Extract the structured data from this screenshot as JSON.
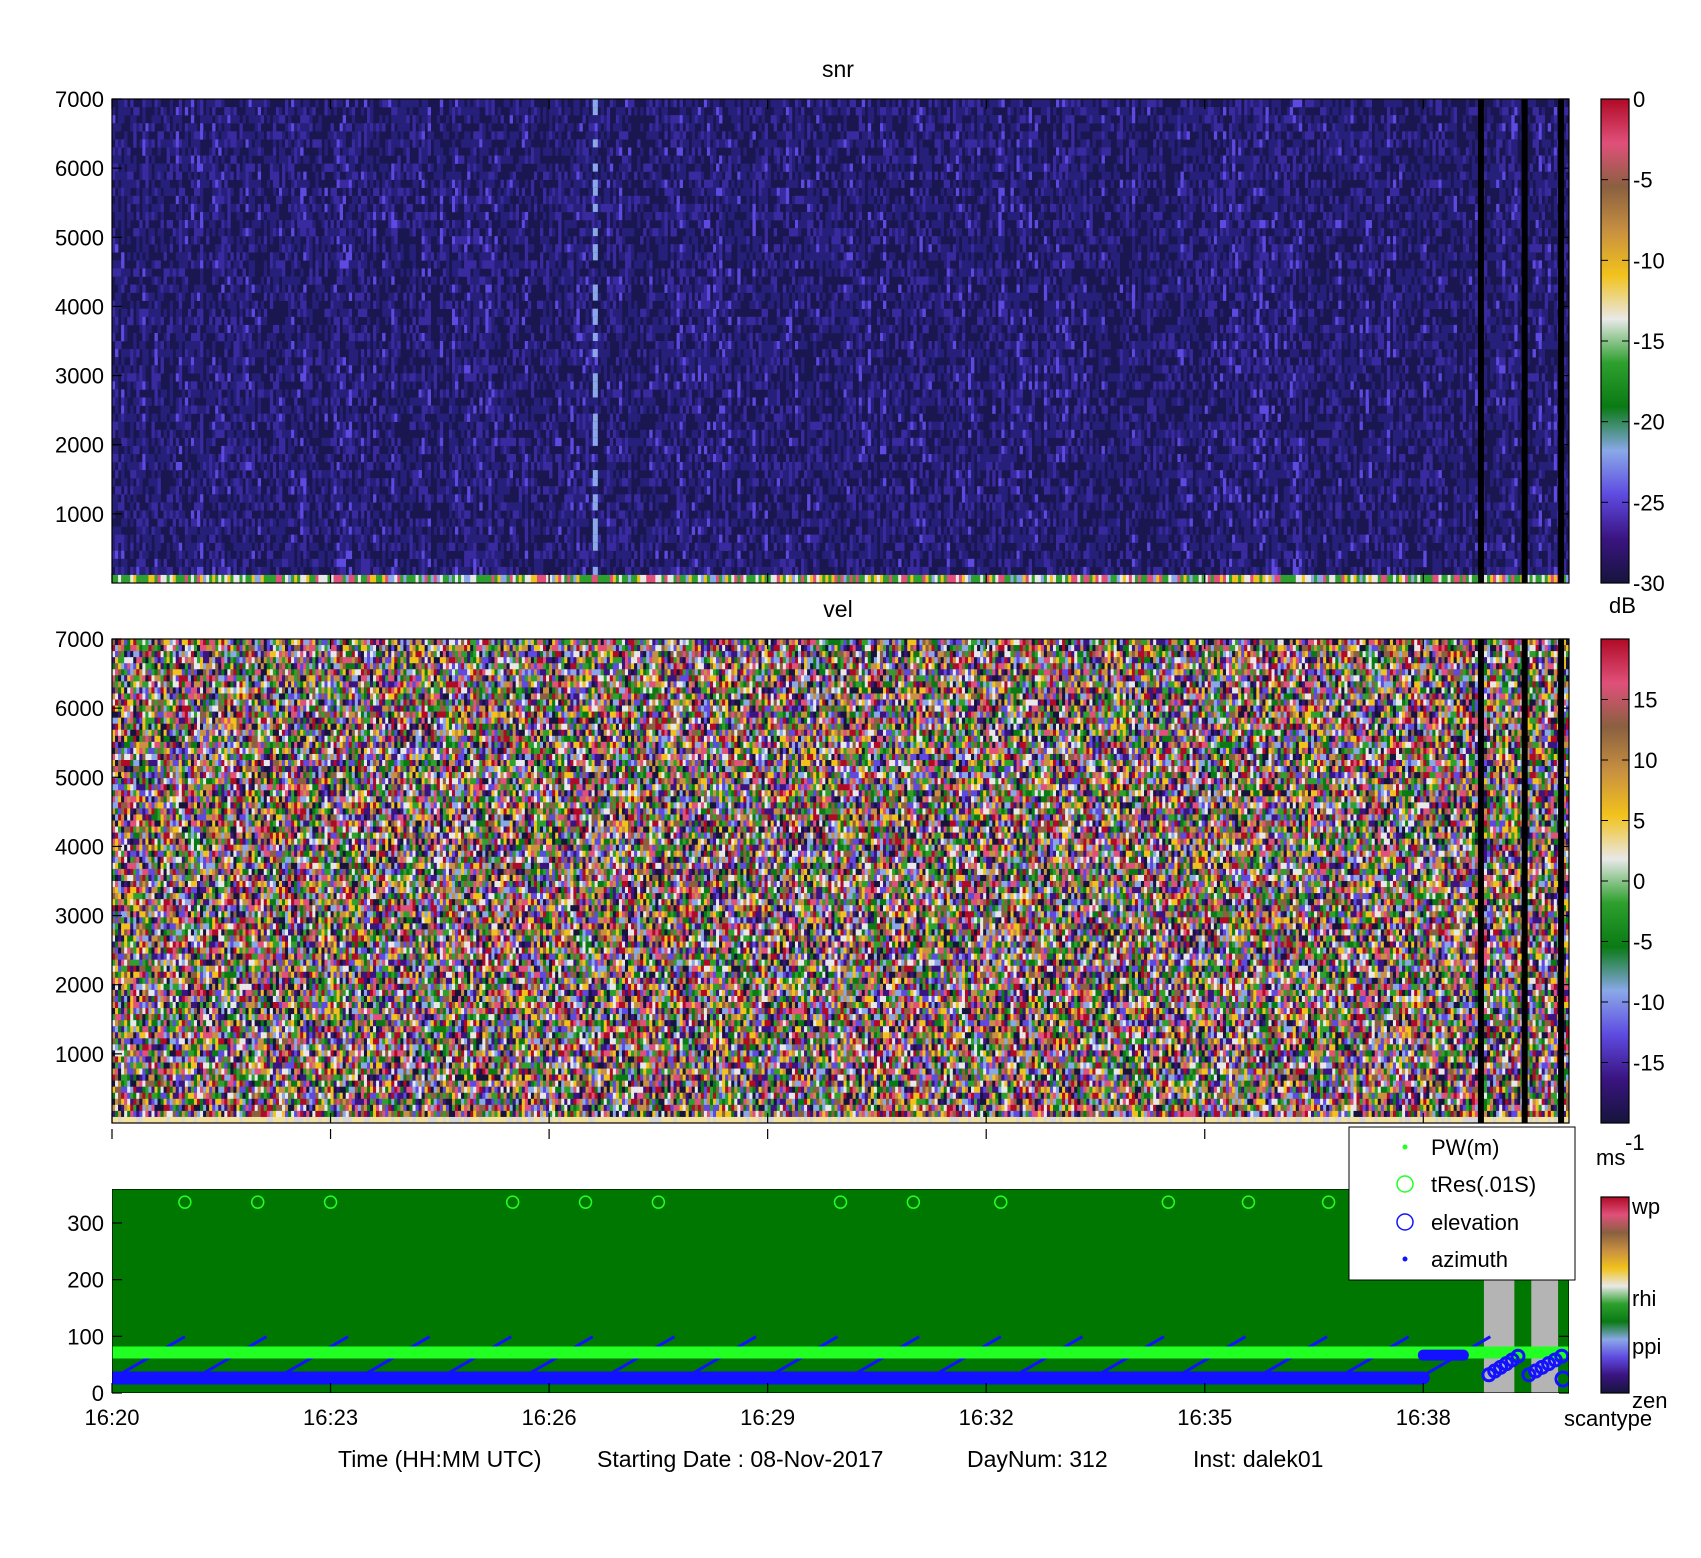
{
  "x_axis": {
    "label": "Time (HH:MM UTC)",
    "start_date_text": "Starting Date : 08-Nov-2017",
    "daynum_text": "DayNum: 312",
    "inst_text": "Inst: dalek01",
    "ticks": [
      "16:20",
      "16:23",
      "16:26",
      "16:29",
      "16:32",
      "16:35",
      "16:38"
    ]
  },
  "colors": {
    "colormap": [
      "#16143c",
      "#3a1480",
      "#5e4ae0",
      "#8aa8e8",
      "#0a7a14",
      "#2ea02e",
      "#e8e8e8",
      "#f2c21c",
      "#c89040",
      "#8a6040",
      "#e0507a",
      "#b00a26"
    ],
    "pw": "#22ff22",
    "tres": "#22ff22",
    "elevation": "#1212ff",
    "azimuth": "#1212ff",
    "scan_bg_ppi": "#007700",
    "scan_bg_gap": "#b4b4b4"
  },
  "chart_data": [
    {
      "type": "heatmap",
      "title": "snr",
      "yticks": [
        "1000",
        "2000",
        "3000",
        "4000",
        "5000",
        "6000",
        "7000"
      ],
      "ylim": [
        0,
        7000
      ],
      "xlim": [
        "16:20",
        "16:40"
      ],
      "colorbar": {
        "label": "dB",
        "ticks": [
          "0",
          "-5",
          "-10",
          "-15",
          "-20",
          "-25",
          "-30"
        ],
        "range": [
          -30,
          0
        ]
      },
      "typical_value_db": -28,
      "near_ground_value_db": -10
    },
    {
      "type": "heatmap",
      "title": "vel",
      "yticks": [
        "1000",
        "2000",
        "3000",
        "4000",
        "5000",
        "6000",
        "7000"
      ],
      "ylim": [
        0,
        7000
      ],
      "xlim": [
        "16:20",
        "16:40"
      ],
      "colorbar": {
        "label": "ms",
        "label_sup": "-1",
        "ticks": [
          "15",
          "10",
          "5",
          "0",
          "-5",
          "-10",
          "-15"
        ],
        "range": [
          -18,
          18
        ]
      },
      "note_noise_field": true
    },
    {
      "type": "scatter",
      "yticks": [
        "0",
        "100",
        "200",
        "300"
      ],
      "ylim": [
        0,
        360
      ],
      "xlim": [
        "16:20",
        "16:40"
      ],
      "colorbar": {
        "label": "scantype",
        "ticks": [
          "wp",
          "rhi",
          "ppi",
          "zen"
        ]
      },
      "legend": [
        "PW(m)",
        "tRes(.01S)",
        "elevation",
        "azimuth"
      ],
      "legend_position": "top-right",
      "series": [
        {
          "name": "PW(m)",
          "approx_value": 50
        },
        {
          "name": "tRes(.01S)",
          "approx_value": 334,
          "times": [
            "16:21",
            "16:22",
            "16:23",
            "16:25.5",
            "16:26.5",
            "16:27.5",
            "16:30",
            "16:31",
            "16:32.2",
            "16:34.5",
            "16:35.6",
            "16:36.7"
          ]
        },
        {
          "name": "elevation",
          "approx_value": 2
        },
        {
          "name": "azimuth",
          "sweep_range": [
            0,
            80
          ],
          "sweep_period_min": 1.12
        }
      ]
    }
  ]
}
